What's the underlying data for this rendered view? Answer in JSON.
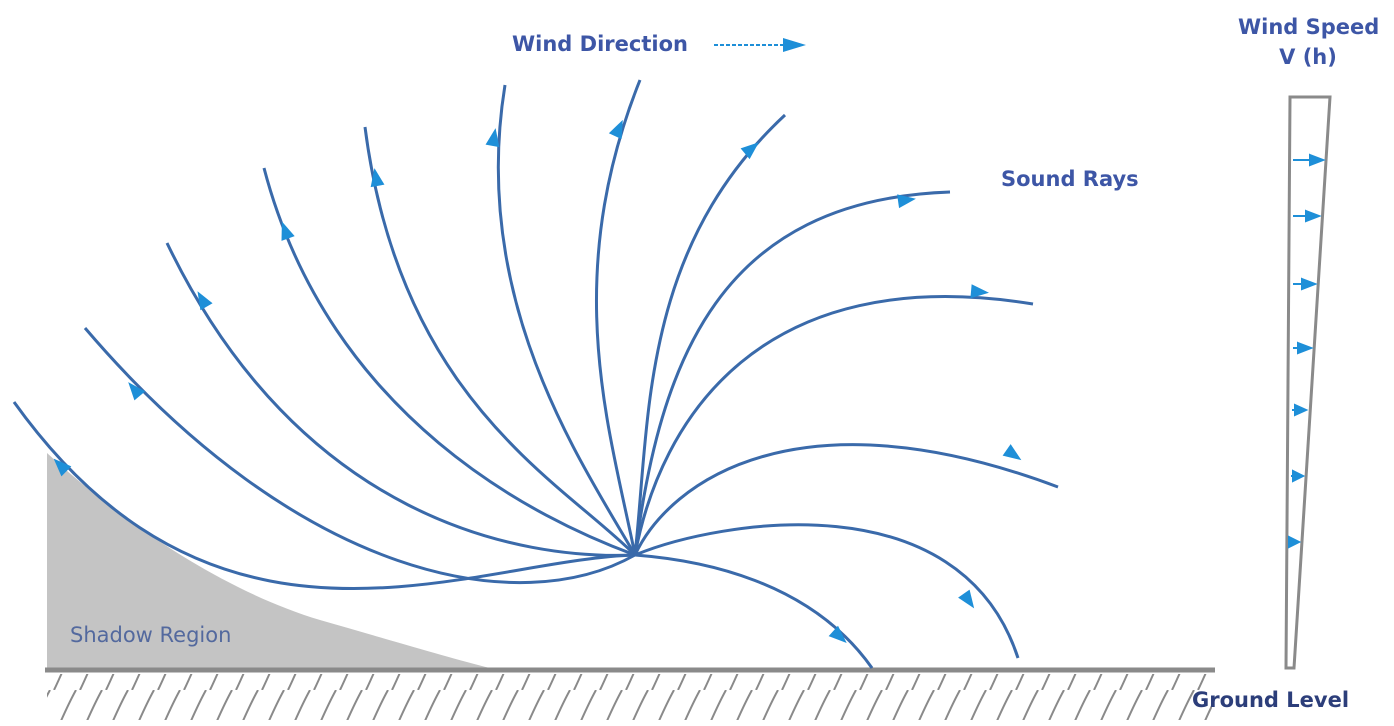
{
  "labels": {
    "wind_direction": "Wind Direction",
    "sound_rays": "Sound Rays",
    "wind_speed_line1": "Wind Speed",
    "wind_speed_line2": "V (h)",
    "shadow_region": "Shadow Region",
    "ground_level": "Ground Level"
  },
  "colors": {
    "ray": "#3a6aaa",
    "arrow": "#1e8fd8",
    "shadow_fill": "#c4c4c4",
    "ground": "#8a8a8a",
    "text": "#3d56a6"
  }
}
